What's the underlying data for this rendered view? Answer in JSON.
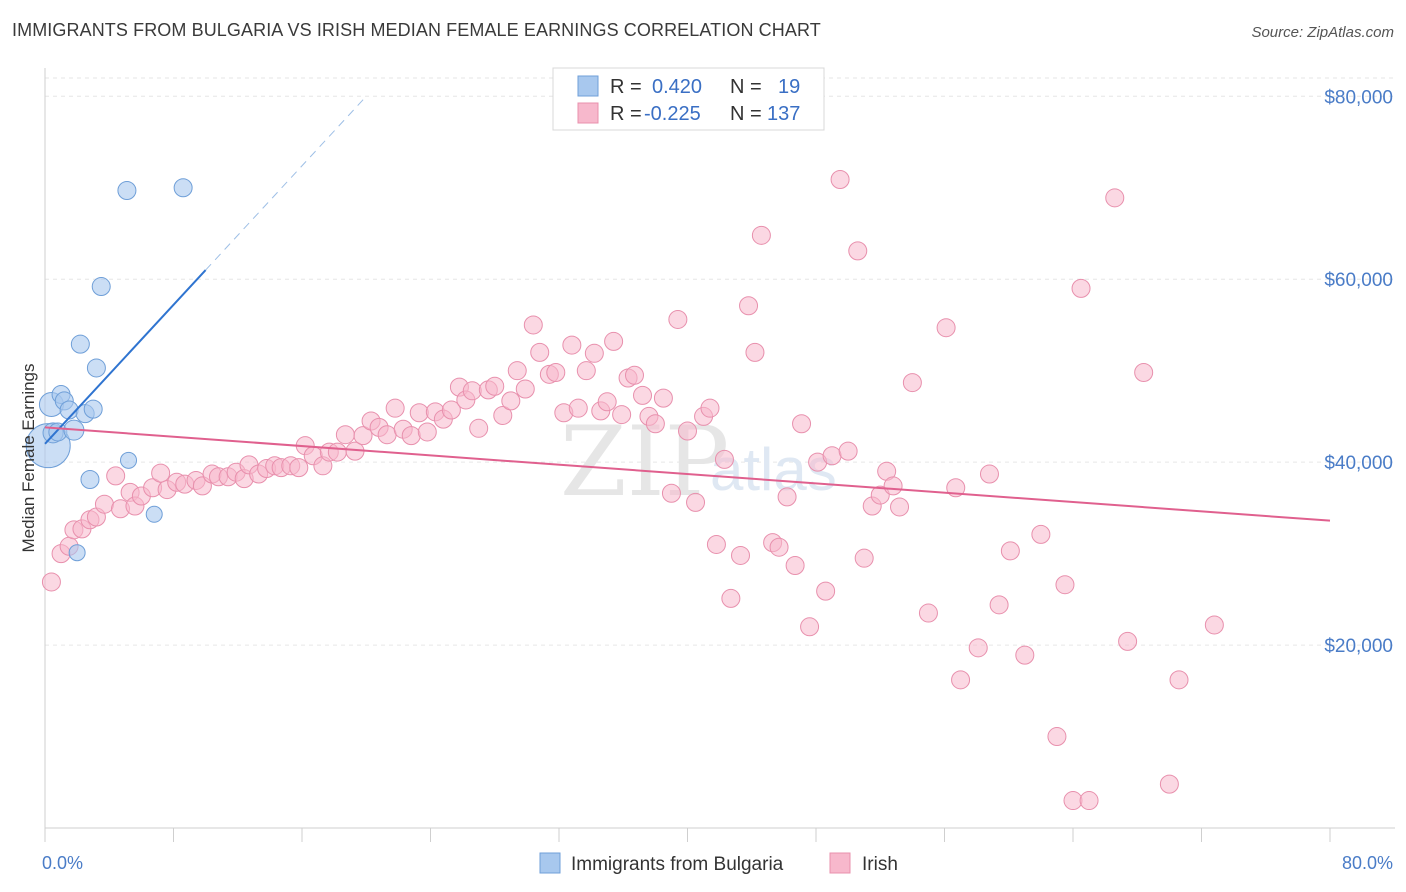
{
  "title": "IMMIGRANTS FROM BULGARIA VS IRISH MEDIAN FEMALE EARNINGS CORRELATION CHART",
  "source": "Source: ZipAtlas.com",
  "watermark": {
    "zip": "ZIP",
    "atlas": "atlas"
  },
  "chart_data": {
    "type": "scatter",
    "xlabel": "",
    "ylabel": "Median Female Earnings",
    "xlim": [
      0,
      80
    ],
    "ylim": [
      0,
      82000
    ],
    "x_tick_labels": [
      "0.0%",
      "80.0%"
    ],
    "y_ticks": [
      20000,
      40000,
      60000,
      80000
    ],
    "y_tick_labels": [
      "$20,000",
      "$40,000",
      "$60,000",
      "$80,000"
    ],
    "grid": true,
    "legend_top": [
      {
        "r_label": "R =",
        "r": "0.420",
        "n_label": "N =",
        "n": "19",
        "color": "#a8c8ee"
      },
      {
        "r_label": "R =",
        "r": "-0.225",
        "n_label": "N =",
        "n": "137",
        "color": "#f7b8cc"
      }
    ],
    "series": [
      {
        "name": "Immigrants from Bulgaria",
        "color": "#a8c8ee",
        "stroke": "#6f9fd8",
        "trend": {
          "x0": 0,
          "y0": 42000,
          "x1": 10,
          "y1": 61000,
          "dash_to_x": 20,
          "dash_to_y": 80000,
          "color": "#2f74d0"
        },
        "points": [
          [
            0.2,
            41800,
            22
          ],
          [
            0.4,
            46300,
            12
          ],
          [
            0.5,
            43200,
            10
          ],
          [
            0.8,
            43300,
            9
          ],
          [
            1.0,
            47400,
            9
          ],
          [
            1.2,
            46700,
            9
          ],
          [
            1.5,
            45700,
            9
          ],
          [
            1.8,
            43500,
            10
          ],
          [
            2.0,
            30100,
            8
          ],
          [
            2.2,
            52900,
            9
          ],
          [
            2.5,
            45300,
            9
          ],
          [
            2.8,
            38100,
            9
          ],
          [
            3.0,
            45800,
            9
          ],
          [
            3.2,
            50300,
            9
          ],
          [
            3.5,
            59200,
            9
          ],
          [
            5.2,
            40200,
            8
          ],
          [
            5.1,
            69700,
            9
          ],
          [
            6.8,
            34300,
            8
          ],
          [
            8.6,
            70000,
            9
          ]
        ]
      },
      {
        "name": "Irish",
        "color": "#f7b8cc",
        "stroke": "#e890ad",
        "trend": {
          "x0": 0,
          "y0": 43800,
          "x1": 80,
          "y1": 33600,
          "color": "#e0608e"
        },
        "points": [
          [
            0.4,
            26900
          ],
          [
            1.0,
            30000
          ],
          [
            1.5,
            30800
          ],
          [
            1.8,
            32600
          ],
          [
            2.3,
            32700
          ],
          [
            2.8,
            33700
          ],
          [
            3.2,
            34000
          ],
          [
            3.7,
            35400
          ],
          [
            4.4,
            38500
          ],
          [
            4.7,
            34900
          ],
          [
            5.3,
            36700
          ],
          [
            5.6,
            35200
          ],
          [
            6.0,
            36300
          ],
          [
            6.7,
            37200
          ],
          [
            7.2,
            38800
          ],
          [
            7.6,
            37000
          ],
          [
            8.2,
            37800
          ],
          [
            8.7,
            37600
          ],
          [
            9.4,
            38000
          ],
          [
            9.8,
            37400
          ],
          [
            10.4,
            38700
          ],
          [
            10.8,
            38400
          ],
          [
            11.4,
            38400
          ],
          [
            11.9,
            38900
          ],
          [
            12.4,
            38200
          ],
          [
            12.7,
            39700
          ],
          [
            13.3,
            38700
          ],
          [
            13.8,
            39300
          ],
          [
            14.3,
            39600
          ],
          [
            14.7,
            39400
          ],
          [
            15.3,
            39600
          ],
          [
            15.8,
            39400
          ],
          [
            16.2,
            41800
          ],
          [
            16.7,
            40700
          ],
          [
            17.3,
            39600
          ],
          [
            17.7,
            41100
          ],
          [
            18.2,
            41100
          ],
          [
            18.7,
            43000
          ],
          [
            19.3,
            41200
          ],
          [
            19.8,
            42900
          ],
          [
            20.3,
            44500
          ],
          [
            20.8,
            43800
          ],
          [
            21.3,
            43000
          ],
          [
            21.8,
            45900
          ],
          [
            22.3,
            43600
          ],
          [
            22.8,
            42900
          ],
          [
            23.3,
            45400
          ],
          [
            23.8,
            43300
          ],
          [
            24.3,
            45500
          ],
          [
            24.8,
            44700
          ],
          [
            25.3,
            45700
          ],
          [
            25.8,
            48200
          ],
          [
            26.2,
            46800
          ],
          [
            26.6,
            47800
          ],
          [
            27.0,
            43700
          ],
          [
            27.6,
            47900
          ],
          [
            28.0,
            48300
          ],
          [
            28.5,
            45100
          ],
          [
            29.0,
            46700
          ],
          [
            29.4,
            50000
          ],
          [
            29.9,
            48000
          ],
          [
            30.4,
            55000
          ],
          [
            30.8,
            52000
          ],
          [
            31.4,
            49600
          ],
          [
            31.8,
            49800
          ],
          [
            32.3,
            45400
          ],
          [
            32.8,
            52800
          ],
          [
            33.2,
            45900
          ],
          [
            33.7,
            50000
          ],
          [
            34.2,
            51900
          ],
          [
            34.6,
            45600
          ],
          [
            35.0,
            46600
          ],
          [
            35.4,
            53200
          ],
          [
            35.9,
            45200
          ],
          [
            36.3,
            49200
          ],
          [
            36.7,
            49500
          ],
          [
            37.2,
            47300
          ],
          [
            37.6,
            45000
          ],
          [
            38.0,
            44200
          ],
          [
            38.5,
            47000
          ],
          [
            39.0,
            36600
          ],
          [
            39.4,
            55600
          ],
          [
            40.0,
            43400
          ],
          [
            40.5,
            35600
          ],
          [
            41.0,
            45000
          ],
          [
            41.4,
            45900
          ],
          [
            41.8,
            31000
          ],
          [
            42.3,
            40300
          ],
          [
            42.7,
            25100
          ],
          [
            43.3,
            29800
          ],
          [
            43.8,
            57100
          ],
          [
            44.2,
            52000
          ],
          [
            44.6,
            64800
          ],
          [
            45.3,
            31200
          ],
          [
            45.7,
            30700
          ],
          [
            46.2,
            36200
          ],
          [
            46.7,
            28700
          ],
          [
            47.1,
            44200
          ],
          [
            47.6,
            22000
          ],
          [
            48.1,
            40000
          ],
          [
            48.6,
            25900
          ],
          [
            49.0,
            40700
          ],
          [
            49.5,
            70900
          ],
          [
            50.0,
            41200
          ],
          [
            50.6,
            63100
          ],
          [
            51.0,
            29500
          ],
          [
            51.5,
            35200
          ],
          [
            52.0,
            36400
          ],
          [
            52.4,
            39000
          ],
          [
            52.8,
            37400
          ],
          [
            53.2,
            35100
          ],
          [
            54.0,
            48700
          ],
          [
            55.0,
            23500
          ],
          [
            56.1,
            54700
          ],
          [
            56.7,
            37200
          ],
          [
            57.0,
            16200
          ],
          [
            58.1,
            19700
          ],
          [
            58.8,
            38700
          ],
          [
            59.4,
            24400
          ],
          [
            60.1,
            30300
          ],
          [
            61.0,
            18900
          ],
          [
            62.0,
            32100
          ],
          [
            63.0,
            10000
          ],
          [
            63.5,
            26600
          ],
          [
            64.0,
            3000
          ],
          [
            64.5,
            59000
          ],
          [
            65.0,
            3000
          ],
          [
            66.6,
            68900
          ],
          [
            67.4,
            20400
          ],
          [
            68.4,
            49800
          ],
          [
            70.6,
            16200
          ],
          [
            72.8,
            22200
          ],
          [
            70.0,
            4800
          ]
        ]
      }
    ]
  }
}
